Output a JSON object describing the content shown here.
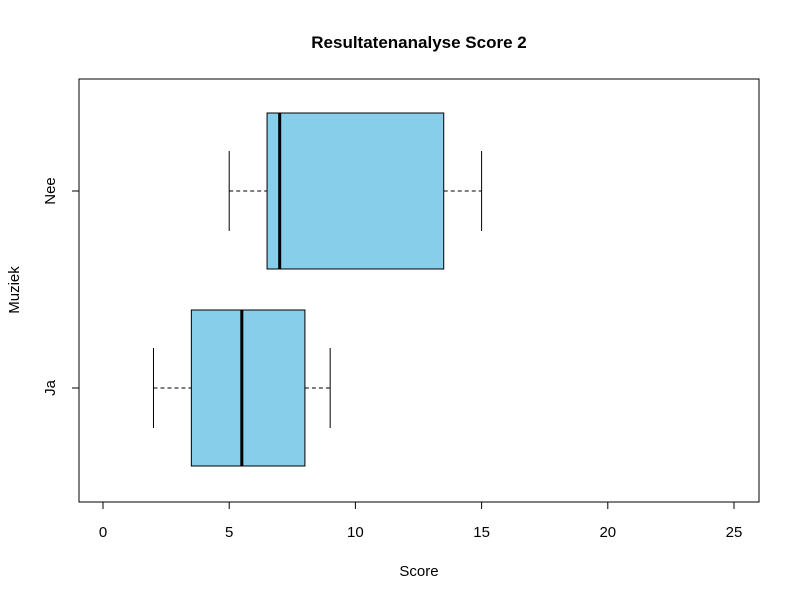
{
  "chart_data": {
    "type": "boxplot",
    "orientation": "horizontal",
    "title": "Resultatenanalyse Score 2",
    "xlabel": "Score",
    "ylabel": "Muziek",
    "xlim": [
      0,
      25
    ],
    "xticks": [
      0,
      5,
      10,
      15,
      20,
      25
    ],
    "grid": false,
    "box_color": "#87CEEB",
    "categories": [
      "Ja",
      "Nee"
    ],
    "boxes": [
      {
        "name": "Ja",
        "min": 2,
        "q1": 3.5,
        "median": 5.5,
        "q3": 8,
        "max": 9
      },
      {
        "name": "Nee",
        "min": 5,
        "q1": 6.5,
        "median": 7,
        "q3": 13.5,
        "max": 15
      }
    ]
  }
}
